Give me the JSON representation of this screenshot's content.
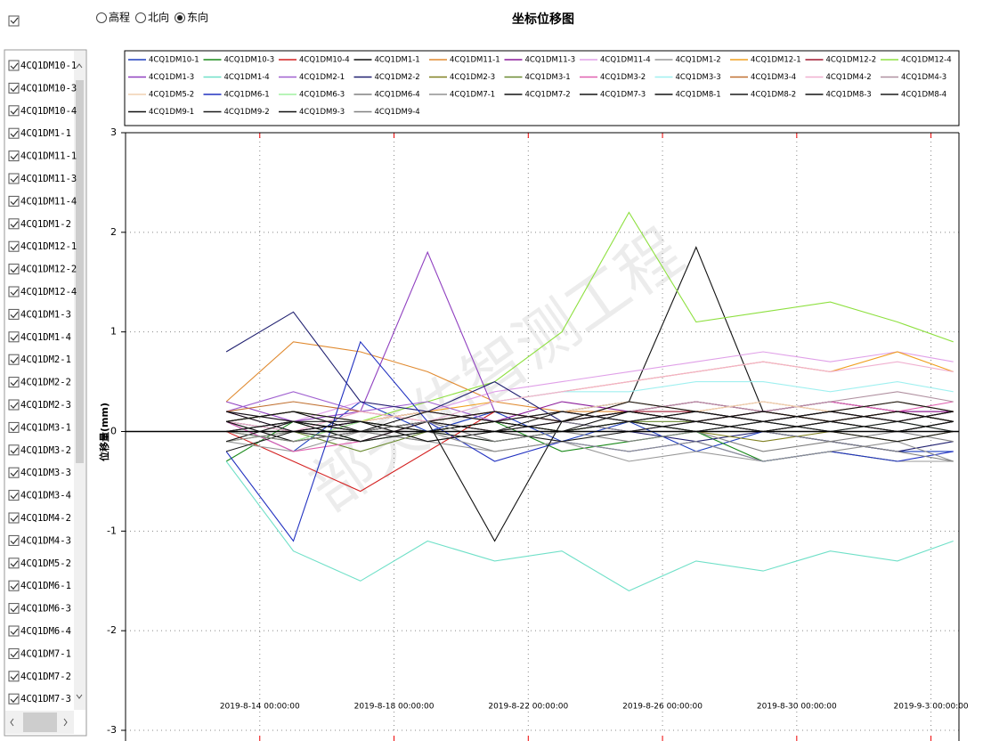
{
  "radio_options": [
    "高程",
    "北向",
    "东向"
  ],
  "radio_selected": 2,
  "point_list": [
    "4CQ1DM10-1",
    "4CQ1DM10-3",
    "4CQ1DM10-4",
    "4CQ1DM1-1",
    "4CQ1DM11-1",
    "4CQ1DM11-3",
    "4CQ1DM11-4",
    "4CQ1DM1-2",
    "4CQ1DM12-1",
    "4CQ1DM12-2",
    "4CQ1DM12-4",
    "4CQ1DM1-3",
    "4CQ1DM1-4",
    "4CQ1DM2-1",
    "4CQ1DM2-2",
    "4CQ1DM2-3",
    "4CQ1DM3-1",
    "4CQ1DM3-2",
    "4CQ1DM3-3",
    "4CQ1DM3-4",
    "4CQ1DM4-2",
    "4CQ1DM4-3",
    "4CQ1DM5-2",
    "4CQ1DM6-1",
    "4CQ1DM6-3",
    "4CQ1DM6-4",
    "4CQ1DM7-1",
    "4CQ1DM7-2",
    "4CQ1DM7-3"
  ],
  "point_list_checked": true,
  "watermark": "部天佑智测工程",
  "chart_data": {
    "type": "line",
    "title": "坐标位移图",
    "ylabel": "位移量(mm)",
    "grid": true,
    "x": [
      "2019-8-13 00:00:00",
      "2019-8-15 00:00:00",
      "2019-8-17 00:00:00",
      "2019-8-19 00:00:00",
      "2019-8-21 00:00:00",
      "2019-8-23 00:00:00",
      "2019-8-25 00:00:00",
      "2019-8-27 00:00:00",
      "2019-8-29 00:00:00",
      "2019-8-31 00:00:00",
      "2019-9-2 00:00:00",
      "2019-9-3 16:00:00"
    ],
    "xlim": [
      "2019-8-10 00:00:00",
      "2019-9-3 20:00:00"
    ],
    "xticks": [
      "2019-8-14 00:00:00",
      "2019-8-18 00:00:00",
      "2019-8-22 00:00:00",
      "2019-8-26 00:00:00",
      "2019-8-30 00:00:00",
      "2019-9-3 00:00:00"
    ],
    "ylim": [
      -3,
      3
    ],
    "yticks": [
      -3,
      -2,
      -1,
      0,
      1,
      2,
      3
    ],
    "series": [
      {
        "name": "4CQ1DM10-1",
        "color": "#1f3fbf",
        "values": [
          0.1,
          -0.2,
          0.3,
          0.0,
          0.2,
          -0.1,
          0.1,
          -0.2,
          0.0,
          -0.1,
          -0.2,
          -0.2
        ]
      },
      {
        "name": "4CQ1DM10-3",
        "color": "#1a8a1a",
        "values": [
          -0.3,
          0.1,
          -0.1,
          0.0,
          0.1,
          -0.2,
          -0.1,
          0.0,
          -0.3,
          -0.2,
          -0.3,
          -0.3
        ]
      },
      {
        "name": "4CQ1DM10-4",
        "color": "#d42020",
        "values": [
          0.0,
          -0.3,
          -0.6,
          -0.2,
          0.2,
          0.1,
          0.2,
          0.3,
          0.2,
          0.1,
          0.2,
          0.2
        ]
      },
      {
        "name": "4CQ1DM1-1",
        "color": "#111111",
        "values": [
          0.1,
          0.0,
          0.1,
          0.2,
          0.1,
          0.2,
          0.3,
          1.85,
          0.2,
          0.3,
          0.2,
          0.1
        ]
      },
      {
        "name": "4CQ1DM11-1",
        "color": "#e08a30",
        "values": [
          0.3,
          0.9,
          0.8,
          0.6,
          0.3,
          0.2,
          0.2,
          0.1,
          0.2,
          0.1,
          0.2,
          0.1
        ]
      },
      {
        "name": "4CQ1DM11-3",
        "color": "#8a1a9a",
        "values": [
          0.2,
          0.0,
          0.1,
          0.2,
          0.1,
          0.3,
          0.2,
          0.3,
          0.2,
          0.3,
          0.2,
          0.2
        ]
      },
      {
        "name": "4CQ1DM11-4",
        "color": "#e0a0e8",
        "values": [
          0.2,
          0.1,
          0.3,
          0.2,
          0.4,
          0.5,
          0.6,
          0.7,
          0.8,
          0.7,
          0.8,
          0.7
        ]
      },
      {
        "name": "4CQ1DM1-2",
        "color": "#999999",
        "values": [
          -0.1,
          -0.2,
          0.0,
          -0.1,
          -0.2,
          -0.1,
          -0.3,
          -0.2,
          -0.3,
          -0.2,
          -0.3,
          -0.3
        ]
      },
      {
        "name": "4CQ1DM12-1",
        "color": "#f0a020",
        "values": [
          0.1,
          0.2,
          0.1,
          0.2,
          0.3,
          0.4,
          0.5,
          0.6,
          0.7,
          0.6,
          0.8,
          0.6
        ]
      },
      {
        "name": "4CQ1DM12-2",
        "color": "#a01830",
        "values": [
          0.0,
          0.1,
          0.0,
          0.1,
          0.2,
          0.1,
          0.2,
          0.2,
          0.1,
          0.2,
          0.1,
          0.2
        ]
      },
      {
        "name": "4CQ1DM12-4",
        "color": "#8ee040",
        "values": [
          0.1,
          0.2,
          0.1,
          0.3,
          0.5,
          1.0,
          2.2,
          1.1,
          1.2,
          1.3,
          1.1,
          0.9
        ]
      },
      {
        "name": "4CQ1DM1-3",
        "color": "#9040c0",
        "values": [
          0.3,
          0.1,
          0.2,
          1.8,
          0.2,
          0.1,
          0.0,
          0.1,
          0.0,
          0.1,
          0.0,
          0.1
        ]
      },
      {
        "name": "4CQ1DM1-4",
        "color": "#70e0c8",
        "values": [
          -0.3,
          -1.2,
          -1.5,
          -1.1,
          -1.3,
          -1.2,
          -1.6,
          -1.3,
          -1.4,
          -1.2,
          -1.3,
          -1.1
        ]
      },
      {
        "name": "4CQ1DM2-1",
        "color": "#a060d0",
        "values": [
          0.2,
          0.4,
          0.2,
          0.3,
          0.1,
          0.2,
          0.1,
          0.0,
          0.1,
          0.0,
          0.1,
          0.0
        ]
      },
      {
        "name": "4CQ1DM2-2",
        "color": "#202070",
        "values": [
          0.8,
          1.2,
          0.3,
          0.2,
          0.5,
          0.1,
          0.0,
          -0.1,
          0.0,
          -0.1,
          -0.2,
          -0.1
        ]
      },
      {
        "name": "4CQ1DM2-3",
        "color": "#808020",
        "values": [
          0.0,
          -0.1,
          0.1,
          0.0,
          0.1,
          0.0,
          0.1,
          0.0,
          -0.1,
          0.0,
          -0.1,
          0.0
        ]
      },
      {
        "name": "4CQ1DM3-1",
        "color": "#6a8a30",
        "values": [
          -0.1,
          0.0,
          -0.2,
          0.0,
          0.1,
          0.0,
          0.1,
          0.1,
          0.0,
          0.1,
          0.0,
          0.1
        ]
      },
      {
        "name": "4CQ1DM3-2",
        "color": "#e060b0",
        "values": [
          0.1,
          -0.2,
          -0.1,
          0.1,
          0.0,
          0.1,
          0.2,
          0.1,
          0.2,
          0.3,
          0.2,
          0.3
        ]
      },
      {
        "name": "4CQ1DM3-3",
        "color": "#a0f0f0",
        "values": [
          0.0,
          0.1,
          0.0,
          0.1,
          0.3,
          0.4,
          0.4,
          0.5,
          0.5,
          0.4,
          0.5,
          0.4
        ]
      },
      {
        "name": "4CQ1DM3-4",
        "color": "#c07030",
        "values": [
          0.2,
          0.3,
          0.2,
          0.1,
          0.2,
          0.1,
          0.3,
          0.2,
          0.3,
          0.2,
          0.3,
          0.2
        ]
      },
      {
        "name": "4CQ1DM4-2",
        "color": "#f0b0d0",
        "values": [
          0.1,
          0.0,
          0.2,
          0.1,
          0.3,
          0.4,
          0.5,
          0.6,
          0.7,
          0.6,
          0.7,
          0.6
        ]
      },
      {
        "name": "4CQ1DM4-3",
        "color": "#b090a0",
        "values": [
          0.0,
          -0.1,
          0.0,
          0.1,
          0.0,
          0.1,
          0.2,
          0.3,
          0.2,
          0.3,
          0.4,
          0.3
        ]
      },
      {
        "name": "4CQ1DM5-2",
        "color": "#f0d0b0",
        "values": [
          0.1,
          0.2,
          0.1,
          0.2,
          0.1,
          0.2,
          0.3,
          0.2,
          0.3,
          0.2,
          0.3,
          0.2
        ]
      },
      {
        "name": "4CQ1DM6-1",
        "color": "#2030c0",
        "values": [
          -0.2,
          -1.1,
          0.9,
          0.1,
          -0.3,
          -0.1,
          -0.2,
          -0.1,
          -0.3,
          -0.2,
          -0.3,
          -0.2
        ]
      },
      {
        "name": "4CQ1DM6-3",
        "color": "#a0f0a0",
        "values": [
          0.0,
          -0.1,
          0.1,
          0.0,
          -0.1,
          0.0,
          0.1,
          0.0,
          0.1,
          0.0,
          0.1,
          0.0
        ]
      },
      {
        "name": "4CQ1DM6-4",
        "color": "#808080",
        "values": [
          0.0,
          0.1,
          0.0,
          -0.1,
          0.0,
          0.1,
          0.0,
          0.1,
          0.0,
          -0.1,
          0.0,
          -0.1
        ]
      },
      {
        "name": "4CQ1DM7-1",
        "color": "#909090",
        "values": [
          -0.1,
          0.0,
          -0.1,
          0.0,
          -0.2,
          -0.1,
          -0.2,
          -0.1,
          -0.3,
          -0.2,
          -0.1,
          -0.3
        ]
      },
      {
        "name": "4CQ1DM7-2",
        "color": "#111111",
        "values": [
          0.1,
          0.2,
          0.0,
          0.1,
          -1.1,
          0.1,
          0.2,
          0.1,
          0.2,
          0.1,
          0.2,
          0.1
        ]
      },
      {
        "name": "4CQ1DM7-3",
        "color": "#151515",
        "values": [
          0.0,
          0.1,
          -0.1,
          0.0,
          0.1,
          0.2,
          0.1,
          0.2,
          0.1,
          0.2,
          0.1,
          0.2
        ]
      },
      {
        "name": "4CQ1DM8-1",
        "color": "#111111",
        "values": [
          0.2,
          0.0,
          0.1,
          -0.1,
          0.0,
          0.1,
          0.2,
          0.1,
          0.0,
          0.1,
          0.2,
          0.1
        ]
      },
      {
        "name": "4CQ1DM8-2",
        "color": "#1a1a1a",
        "values": [
          -0.1,
          0.1,
          0.0,
          0.1,
          0.0,
          -0.1,
          0.0,
          0.1,
          0.0,
          0.1,
          0.0,
          0.1
        ]
      },
      {
        "name": "4CQ1DM8-3",
        "color": "#111111",
        "values": [
          0.1,
          -0.1,
          0.0,
          0.2,
          0.1,
          0.0,
          0.1,
          0.2,
          0.1,
          0.2,
          0.1,
          0.2
        ]
      },
      {
        "name": "4CQ1DM8-4",
        "color": "#1a1a1a",
        "values": [
          0.0,
          0.1,
          0.1,
          0.0,
          -0.1,
          0.0,
          0.1,
          0.0,
          0.1,
          0.0,
          -0.1,
          0.0
        ]
      },
      {
        "name": "4CQ1DM9-1",
        "color": "#111111",
        "values": [
          0.2,
          0.1,
          0.0,
          0.1,
          0.2,
          0.1,
          0.3,
          0.2,
          0.1,
          0.2,
          0.3,
          0.2
        ]
      },
      {
        "name": "4CQ1DM9-2",
        "color": "#1a1a1a",
        "values": [
          -0.2,
          0.0,
          -0.1,
          0.1,
          0.0,
          0.2,
          0.1,
          0.0,
          0.1,
          0.0,
          0.1,
          0.0
        ]
      },
      {
        "name": "4CQ1DM9-3",
        "color": "#111111",
        "values": [
          0.1,
          0.2,
          0.1,
          0.0,
          0.1,
          0.0,
          0.2,
          0.1,
          0.2,
          0.1,
          0.0,
          0.1
        ]
      },
      {
        "name": "4CQ1DM9-4",
        "color": "#808080",
        "values": [
          0.0,
          -0.1,
          0.0,
          0.1,
          -0.1,
          0.0,
          -0.1,
          0.0,
          -0.2,
          -0.1,
          -0.2,
          -0.3
        ]
      }
    ]
  }
}
